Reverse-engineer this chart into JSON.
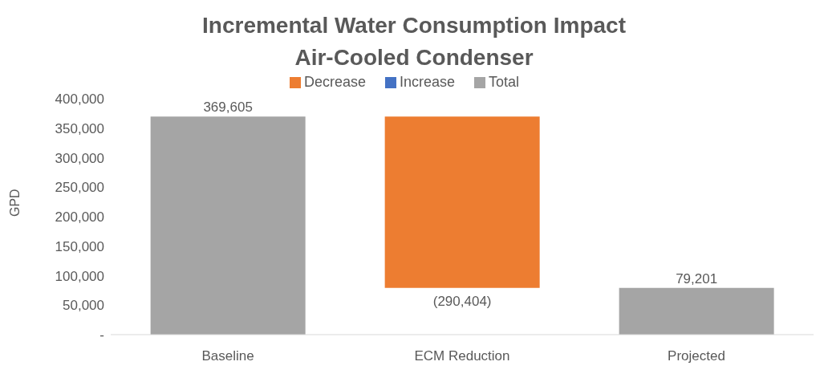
{
  "chart_data": {
    "type": "bar",
    "title": "Incremental Water Consumption Impact\nAir-Cooled Condenser",
    "ylabel": "GPD",
    "categories": [
      "Baseline",
      "ECM Reduction",
      "Projected"
    ],
    "series": [
      {
        "name": "Increase",
        "color": "#4472c4",
        "values": [
          null,
          null,
          null
        ]
      },
      {
        "name": "Decrease",
        "color": "#ed7d31",
        "values": [
          null,
          -290404,
          null
        ],
        "base": [
          null,
          369605,
          null
        ],
        "value_labels": [
          null,
          "(290,404)",
          null
        ]
      },
      {
        "name": "Total",
        "color": "#a5a5a5",
        "values": [
          369605,
          null,
          79201
        ],
        "value_labels": [
          "369,605",
          null,
          "79,201"
        ]
      }
    ],
    "ylim": [
      0,
      400000
    ],
    "yticks": [
      {
        "value": 0,
        "label": "-"
      },
      {
        "value": 50000,
        "label": "50,000"
      },
      {
        "value": 100000,
        "label": "100,000"
      },
      {
        "value": 150000,
        "label": "150,000"
      },
      {
        "value": 200000,
        "label": "200,000"
      },
      {
        "value": 250000,
        "label": "250,000"
      },
      {
        "value": 300000,
        "label": "300,000"
      },
      {
        "value": 350000,
        "label": "350,000"
      },
      {
        "value": 400000,
        "label": "400,000"
      }
    ],
    "legend": "top"
  }
}
